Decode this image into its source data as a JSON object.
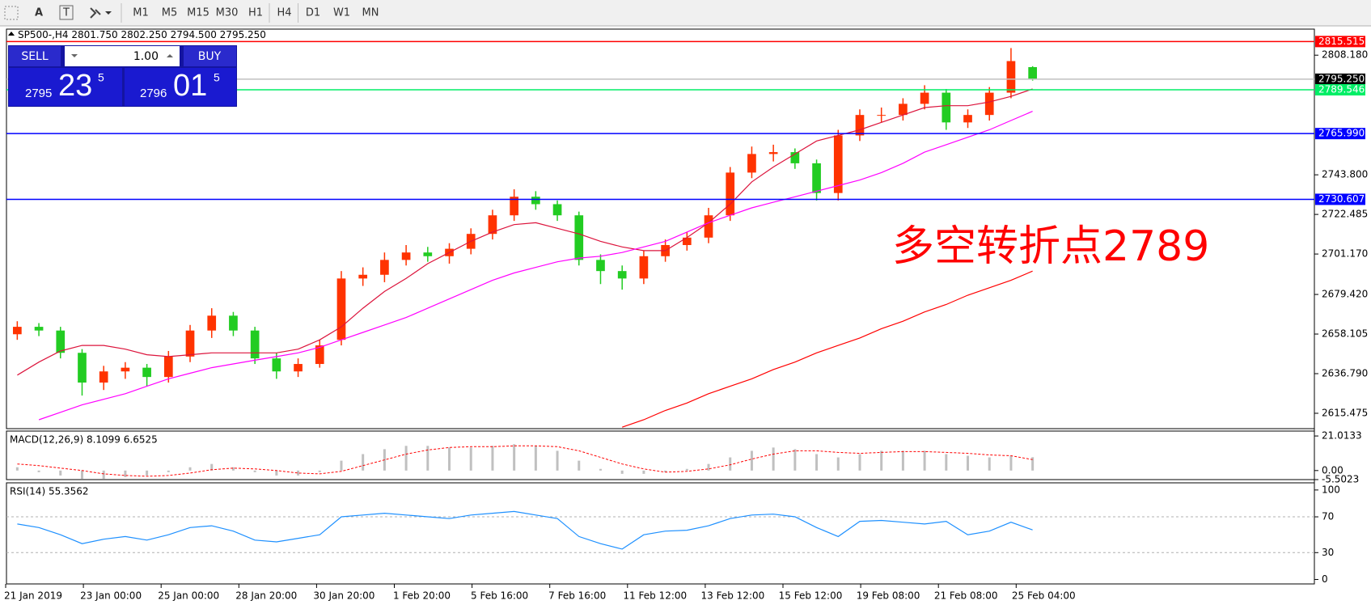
{
  "toolbar": {
    "text_tool": "A",
    "label_tool": "T",
    "timeframes": [
      "M1",
      "M5",
      "M15",
      "M30",
      "H1",
      "H4",
      "D1",
      "W1",
      "MN"
    ]
  },
  "trade_panel": {
    "sell": "SELL",
    "lot": "1.00",
    "buy": "BUY",
    "bid": {
      "big": "2795",
      "pips": "23",
      "frac": "5"
    },
    "ask": {
      "big": "2796",
      "pips": "01",
      "frac": "5"
    }
  },
  "header": {
    "symbol": "SP500-,H4",
    "ohlc": [
      "2801.750",
      "2802.250",
      "2794.500",
      "2795.250"
    ]
  },
  "chart_data": {
    "type": "candlestick",
    "annotation": "多空转折点2789",
    "up_color": "#ff3300",
    "down_color": "#22cc22",
    "open": [
      2658,
      2662,
      2660,
      2648,
      2632,
      2638,
      2640,
      2635,
      2646,
      2660,
      2668,
      2660,
      2645,
      2638,
      2642,
      2655,
      2688,
      2690,
      2698,
      2702,
      2700,
      2704,
      2712,
      2722,
      2732,
      2728,
      2722,
      2698,
      2692,
      2688,
      2700,
      2706,
      2710,
      2722,
      2745,
      2755,
      2756,
      2750,
      2734,
      2765,
      2776,
      2776,
      2782,
      2788,
      2772,
      2776,
      2788,
      2801.75
    ],
    "high": [
      2665,
      2664,
      2662,
      2650,
      2641,
      2643,
      2642,
      2649,
      2663,
      2672,
      2670,
      2662,
      2648,
      2645,
      2655,
      2692,
      2694,
      2702,
      2706,
      2705,
      2707,
      2715,
      2725,
      2736,
      2735,
      2730,
      2724,
      2701,
      2695,
      2703,
      2709,
      2713,
      2726,
      2748,
      2759,
      2760,
      2758,
      2752,
      2768,
      2779,
      2780,
      2785,
      2792,
      2790,
      2779,
      2791,
      2812,
      2802.25
    ],
    "low": [
      2655,
      2657,
      2645,
      2625,
      2628,
      2634,
      2630,
      2632,
      2643,
      2656,
      2657,
      2642,
      2634,
      2635,
      2640,
      2652,
      2684,
      2686,
      2695,
      2697,
      2696,
      2701,
      2709,
      2719,
      2725,
      2719,
      2695,
      2685,
      2682,
      2685,
      2697,
      2703,
      2707,
      2719,
      2742,
      2751,
      2747,
      2730,
      2730,
      2762,
      2772,
      2773,
      2779,
      2768,
      2769,
      2773,
      2785,
      2794.5
    ],
    "close": [
      2662,
      2660,
      2648,
      2632,
      2638,
      2640,
      2635,
      2646,
      2660,
      2668,
      2660,
      2645,
      2638,
      2642,
      2652,
      2688,
      2690,
      2698,
      2702,
      2700,
      2704,
      2712,
      2722,
      2732,
      2728,
      2722,
      2698,
      2692,
      2688,
      2700,
      2706,
      2710,
      2722,
      2745,
      2755,
      2756,
      2750,
      2734,
      2765,
      2776,
      2776,
      2782,
      2788,
      2772,
      2776,
      2788,
      2805,
      2795.25
    ],
    "moving_averages": [
      {
        "color": "#dc143c",
        "values": [
          2636,
          2643,
          2649,
          2652,
          2652,
          2650,
          2647,
          2646,
          2647,
          2648,
          2648,
          2648,
          2648,
          2650,
          2655,
          2662,
          2672,
          2681,
          2688,
          2696,
          2702,
          2708,
          2713,
          2717,
          2718,
          2715,
          2712,
          2708,
          2705,
          2703,
          2703,
          2710,
          2718,
          2728,
          2740,
          2748,
          2755,
          2762,
          2765,
          2768,
          2772,
          2776,
          2780,
          2781,
          2781,
          2783,
          2786,
          2790
        ]
      },
      {
        "color": "#ff00ff",
        "values": [
          null,
          2612,
          2616,
          2620,
          2623,
          2626,
          2630,
          2634,
          2637,
          2640,
          2642,
          2644,
          2646,
          2648,
          2651,
          2655,
          2659,
          2663,
          2667,
          2672,
          2677,
          2682,
          2687,
          2691,
          2694,
          2697,
          2699,
          2700,
          2702,
          2705,
          2708,
          2713,
          2718,
          2722,
          2726,
          2729,
          2732,
          2735,
          2738,
          2741,
          2745,
          2750,
          2756,
          2760,
          2764,
          2768,
          2773,
          2778
        ]
      },
      {
        "color": "#ff0000",
        "values": [
          null,
          null,
          null,
          null,
          null,
          null,
          null,
          null,
          null,
          null,
          null,
          null,
          null,
          null,
          null,
          null,
          null,
          null,
          null,
          null,
          null,
          null,
          null,
          null,
          null,
          null,
          null,
          null,
          2608,
          2612,
          2617,
          2621,
          2626,
          2630,
          2634,
          2639,
          2643,
          2648,
          2652,
          2656,
          2661,
          2665,
          2670,
          2674,
          2679,
          2683,
          2687,
          2692
        ]
      }
    ],
    "ylim": [
      2607.2,
      2822.2
    ],
    "yticks": [
      {
        "value": 2808.18,
        "label": "2808.180"
      },
      {
        "value": 2743.8,
        "label": "2743.800"
      },
      2722.485,
      {
        "value": 2701.17,
        "label": "2701.170"
      },
      {
        "value": 2679.42,
        "label": "2679.420"
      },
      2658.105,
      {
        "value": 2636.79,
        "label": "2636.790"
      },
      2615.475
    ],
    "levels": [
      {
        "price": 2815.515,
        "color": "#ff0000"
      },
      {
        "price": {
          "value": 2795.25,
          "label": "2795.250"
        },
        "color": "#c0c0c0",
        "label_bg": "#000000"
      },
      {
        "price": 2789.546,
        "color": "#00ee66"
      },
      {
        "price": {
          "value": 2765.99,
          "label": "2765.990"
        },
        "color": "#0000ff"
      },
      {
        "price": 2730.607,
        "color": "#0000ff"
      }
    ],
    "xlabels": [
      "21 Jan 2019",
      "23 Jan 00:00",
      "25 Jan 00:00",
      "28 Jan 20:00",
      "30 Jan 20:00",
      "1 Feb 20:00",
      "5 Feb 16:00",
      "7 Feb 16:00",
      "11 Feb 12:00",
      "13 Feb 12:00",
      "15 Feb 12:00",
      "19 Feb 08:00",
      "21 Feb 08:00",
      "25 Feb 04:00"
    ],
    "macd": {
      "title": "MACD(12,26,9) 8.1099 6.6525",
      "hist_color": "#c0c0c0",
      "signal_color": "#ff0000",
      "ylim": [
        -5.5023,
        24
      ],
      "yticks": [
        21.0133,
        {
          "value": 0,
          "label": "0.00"
        },
        -5.5023
      ],
      "histogram": [
        2,
        -1,
        -3,
        -5,
        -5,
        -4,
        -3,
        -1,
        2,
        4,
        2,
        -1,
        -3,
        -3,
        -1,
        6,
        10,
        13,
        15,
        15,
        14,
        14,
        15,
        16,
        15,
        12,
        6,
        1,
        -2,
        -2,
        -1,
        1,
        4,
        8,
        12,
        14,
        13,
        10,
        8,
        10,
        12,
        12,
        12,
        10,
        9,
        8,
        9,
        8.1099
      ],
      "signal": [
        4,
        3,
        1.5,
        0,
        -2,
        -3,
        -3.5,
        -3,
        -1.5,
        0.5,
        1.5,
        1,
        0,
        -1.5,
        -2,
        -0.5,
        3,
        6.5,
        10,
        12.5,
        14,
        14.5,
        14.5,
        15,
        15,
        14.5,
        12,
        8,
        4,
        1,
        -1,
        -0.5,
        1,
        3.5,
        7,
        10,
        12,
        12,
        11,
        10.5,
        11,
        11.5,
        11.5,
        11,
        10.5,
        9.5,
        9,
        6.6525
      ]
    },
    "rsi": {
      "title": "RSI(14) 55.3562",
      "color": "#1e90ff",
      "ylim": [
        -5,
        108
      ],
      "yticks": [
        100,
        70,
        30,
        0
      ],
      "values": [
        62,
        58,
        50,
        40,
        45,
        48,
        44,
        50,
        58,
        60,
        54,
        44,
        42,
        46,
        50,
        70,
        72,
        74,
        72,
        70,
        68,
        72,
        74,
        76,
        72,
        68,
        48,
        40,
        34,
        50,
        54,
        55,
        60,
        68,
        72,
        73,
        70,
        58,
        48,
        65,
        66,
        64,
        62,
        65,
        50,
        54,
        64,
        55.3562
      ]
    }
  }
}
